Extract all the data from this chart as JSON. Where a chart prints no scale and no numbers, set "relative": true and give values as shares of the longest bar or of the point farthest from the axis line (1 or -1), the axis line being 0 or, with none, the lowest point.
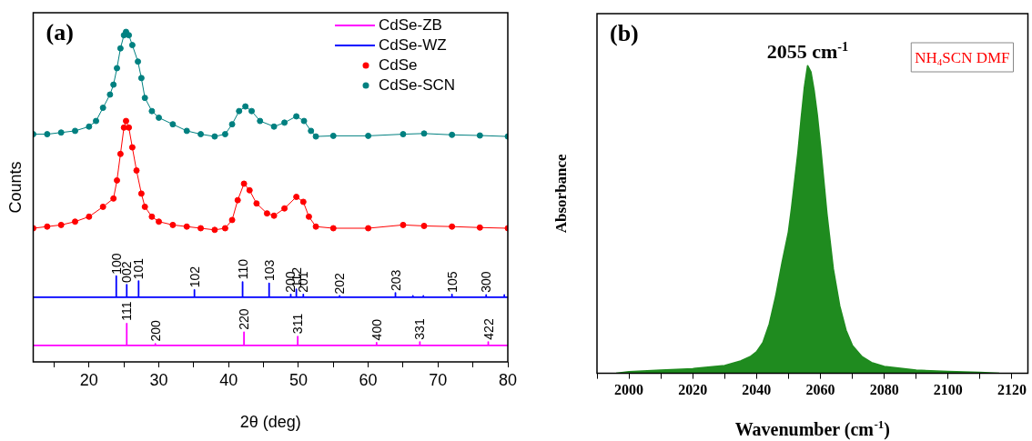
{
  "chart_data": [
    {
      "type": "line",
      "title": "(a)",
      "xlabel": "2θ (deg)",
      "ylabel": "Counts",
      "relative": true,
      "tick_labels": "x",
      "grid": false,
      "legend": "top right",
      "xlim": [
        12,
        80
      ],
      "xticks": [
        {
          "value": 15,
          "label": null
        },
        20,
        {
          "value": 25,
          "label": null
        },
        30,
        {
          "value": 35,
          "label": null
        },
        40,
        {
          "value": 45,
          "label": null
        },
        50,
        {
          "value": 55,
          "label": null
        },
        60,
        {
          "value": 65,
          "label": null
        },
        70,
        {
          "value": 75,
          "label": null
        },
        80
      ],
      "series": [
        {
          "name": "CdSe-ZB",
          "color": "#ff00ff",
          "marker": "none",
          "line_style": "solid",
          "x": [
            12,
            25.4,
            25.4,
            25.4,
            29.5,
            29.5,
            29.5,
            42.2,
            42.2,
            42.2,
            49.9,
            49.9,
            49.9,
            61.2,
            61.2,
            61.2,
            67.4,
            67.4,
            67.4,
            77.2,
            77.2,
            77.2,
            80
          ],
          "values": [
            0.05,
            0.05,
            0.116,
            0.05,
            0.05,
            0.055,
            0.05,
            0.05,
            0.09,
            0.05,
            0.05,
            0.077,
            0.05,
            0.05,
            0.058,
            0.05,
            0.05,
            0.06,
            0.05,
            0.05,
            0.06,
            0.05,
            0.05
          ]
        },
        {
          "name": "CdSe-WZ",
          "color": "#0000ff",
          "marker": "none",
          "line_style": "solid",
          "x": [
            12,
            23.9,
            23.9,
            23.9,
            25.4,
            25.4,
            25.4,
            27.1,
            27.1,
            27.1,
            35.1,
            35.1,
            35.1,
            42.0,
            42.0,
            42.0,
            45.8,
            45.8,
            45.8,
            48.9,
            48.9,
            48.9,
            49.7,
            49.7,
            49.7,
            50.7,
            50.7,
            50.7,
            55.9,
            55.9,
            55.9,
            63.9,
            63.9,
            63.9,
            66.4,
            66.4,
            66.4,
            67.9,
            67.9,
            67.9,
            72.0,
            72.0,
            72.0,
            76.9,
            76.9,
            76.9,
            79.5,
            79.5,
            79.5,
            80
          ],
          "values": [
            0.196,
            0.196,
            0.26,
            0.196,
            0.196,
            0.234,
            0.196,
            0.196,
            0.245,
            0.196,
            0.196,
            0.218,
            0.196,
            0.196,
            0.242,
            0.196,
            0.196,
            0.238,
            0.196,
            0.196,
            0.204,
            0.196,
            0.196,
            0.22,
            0.196,
            0.196,
            0.204,
            0.196,
            0.196,
            0.2,
            0.196,
            0.196,
            0.209,
            0.196,
            0.196,
            0.2,
            0.196,
            0.196,
            0.2,
            0.196,
            0.196,
            0.204,
            0.196,
            0.196,
            0.203,
            0.196,
            0.196,
            0.203,
            0.196,
            0.196
          ]
        },
        {
          "name": "CdSe",
          "color": "#ff0000",
          "marker": "circle",
          "line_style": "solid",
          "x": [
            12,
            14,
            16,
            18,
            20,
            22,
            23.5,
            24,
            24.5,
            25,
            25.3,
            25.7,
            26.2,
            26.8,
            27.5,
            28,
            29,
            30,
            32,
            34,
            36,
            38,
            39.5,
            40.5,
            41.3,
            42.2,
            43,
            44,
            45.5,
            46.5,
            48,
            49.7,
            50.7,
            51.5,
            52.5,
            55,
            60,
            65,
            68,
            72,
            76,
            80
          ],
          "values": [
            0.405,
            0.41,
            0.415,
            0.425,
            0.44,
            0.47,
            0.495,
            0.55,
            0.63,
            0.71,
            0.73,
            0.71,
            0.65,
            0.58,
            0.51,
            0.47,
            0.44,
            0.425,
            0.415,
            0.41,
            0.405,
            0.4,
            0.405,
            0.43,
            0.49,
            0.54,
            0.52,
            0.48,
            0.45,
            0.443,
            0.465,
            0.5,
            0.485,
            0.44,
            0.41,
            0.405,
            0.405,
            0.415,
            0.412,
            0.41,
            0.407,
            0.405
          ]
        },
        {
          "name": "CdSe-SCN",
          "color": "#008080",
          "marker": "circle",
          "line_style": "solid",
          "x": [
            12,
            14,
            16,
            18,
            20,
            21,
            22,
            23,
            23.5,
            24,
            24.5,
            25,
            25.3,
            25.7,
            26.2,
            27,
            27.5,
            28,
            29,
            30,
            32,
            34,
            36,
            38,
            39.5,
            40.5,
            41.5,
            42.4,
            43.3,
            44.5,
            46.5,
            48,
            49.7,
            50.8,
            51.8,
            52.5,
            55,
            60,
            65,
            68,
            72,
            76,
            80
          ],
          "values": [
            0.69,
            0.69,
            0.695,
            0.7,
            0.713,
            0.73,
            0.77,
            0.81,
            0.84,
            0.89,
            0.95,
            0.99,
            1,
            0.99,
            0.96,
            0.91,
            0.86,
            0.8,
            0.76,
            0.74,
            0.72,
            0.7,
            0.69,
            0.683,
            0.69,
            0.72,
            0.76,
            0.774,
            0.76,
            0.73,
            0.713,
            0.725,
            0.744,
            0.73,
            0.7,
            0.683,
            0.685,
            0.685,
            0.69,
            0.692,
            0.688,
            0.686,
            0.683
          ]
        }
      ],
      "annotations": [
        {
          "text": "100",
          "x": 23.9,
          "y": 0.265
        },
        {
          "text": "002",
          "x": 25.4,
          "y": 0.24
        },
        {
          "text": "101",
          "x": 27.1,
          "y": 0.25
        },
        {
          "text": "102",
          "x": 35.1,
          "y": 0.225
        },
        {
          "text": "110",
          "x": 42.0,
          "y": 0.25
        },
        {
          "text": "103",
          "x": 45.8,
          "y": 0.245
        },
        {
          "text": "200",
          "x": 48.9,
          "y": 0.21
        },
        {
          "text": "112",
          "x": 49.7,
          "y": 0.225
        },
        {
          "text": "201",
          "x": 50.7,
          "y": 0.21
        },
        {
          "text": "202",
          "x": 55.9,
          "y": 0.205
        },
        {
          "text": "203",
          "x": 63.9,
          "y": 0.215
        },
        {
          "text": "105",
          "x": 72.0,
          "y": 0.21
        },
        {
          "text": "300",
          "x": 76.9,
          "y": 0.21
        },
        {
          "text": "111",
          "x": 25.4,
          "y": 0.125
        },
        {
          "text": "200",
          "x": 29.5,
          "y": 0.062
        },
        {
          "text": "220",
          "x": 42.2,
          "y": 0.097
        },
        {
          "text": "311",
          "x": 49.9,
          "y": 0.085
        },
        {
          "text": "400",
          "x": 61.2,
          "y": 0.065
        },
        {
          "text": "331",
          "x": 67.4,
          "y": 0.067
        },
        {
          "text": "422",
          "x": 77.2,
          "y": 0.067
        }
      ]
    },
    {
      "type": "area",
      "title": "(b)",
      "xlabel": "Wavenumber (cm$^{-1}$)",
      "ylabel": "Absorbance",
      "relative": true,
      "tick_labels": "x",
      "grid": false,
      "xlim": [
        1990,
        2125
      ],
      "xticks": [
        {
          "value": 1990,
          "label": null
        },
        2000,
        {
          "value": 2010,
          "label": null
        },
        2020,
        {
          "value": 2030,
          "label": null
        },
        2040,
        {
          "value": 2050,
          "label": null
        },
        2060,
        {
          "value": 2070,
          "label": null
        },
        2080,
        {
          "value": 2090,
          "label": null
        },
        2100,
        {
          "value": 2110,
          "label": null
        },
        2120
      ],
      "x": [
        1996,
        2000,
        2010,
        2020,
        2030,
        2035,
        2038,
        2040,
        2042,
        2044,
        2046,
        2048,
        2050,
        2051,
        2052,
        2053,
        2054,
        2055,
        2056,
        2057,
        2058,
        2059,
        2060,
        2061,
        2062,
        2064,
        2066,
        2068,
        2070,
        2073,
        2076,
        2080,
        2090,
        2100,
        2110,
        2116
      ],
      "series": [
        {
          "color": "#1f8b1f",
          "values": [
            0,
            0.005,
            0.01,
            0.015,
            0.025,
            0.04,
            0.054,
            0.07,
            0.1,
            0.16,
            0.25,
            0.36,
            0.46,
            0.54,
            0.63,
            0.72,
            0.83,
            0.93,
            1,
            0.98,
            0.92,
            0.84,
            0.74,
            0.63,
            0.52,
            0.34,
            0.22,
            0.14,
            0.09,
            0.054,
            0.035,
            0.022,
            0.01,
            0.006,
            0.003,
            0
          ]
        }
      ],
      "annotations": [
        {
          "text": "2055 cm$^{-1}$",
          "x": 2056,
          "y": 1
        },
        "NH$_{4}$SCN DMF"
      ]
    }
  ]
}
